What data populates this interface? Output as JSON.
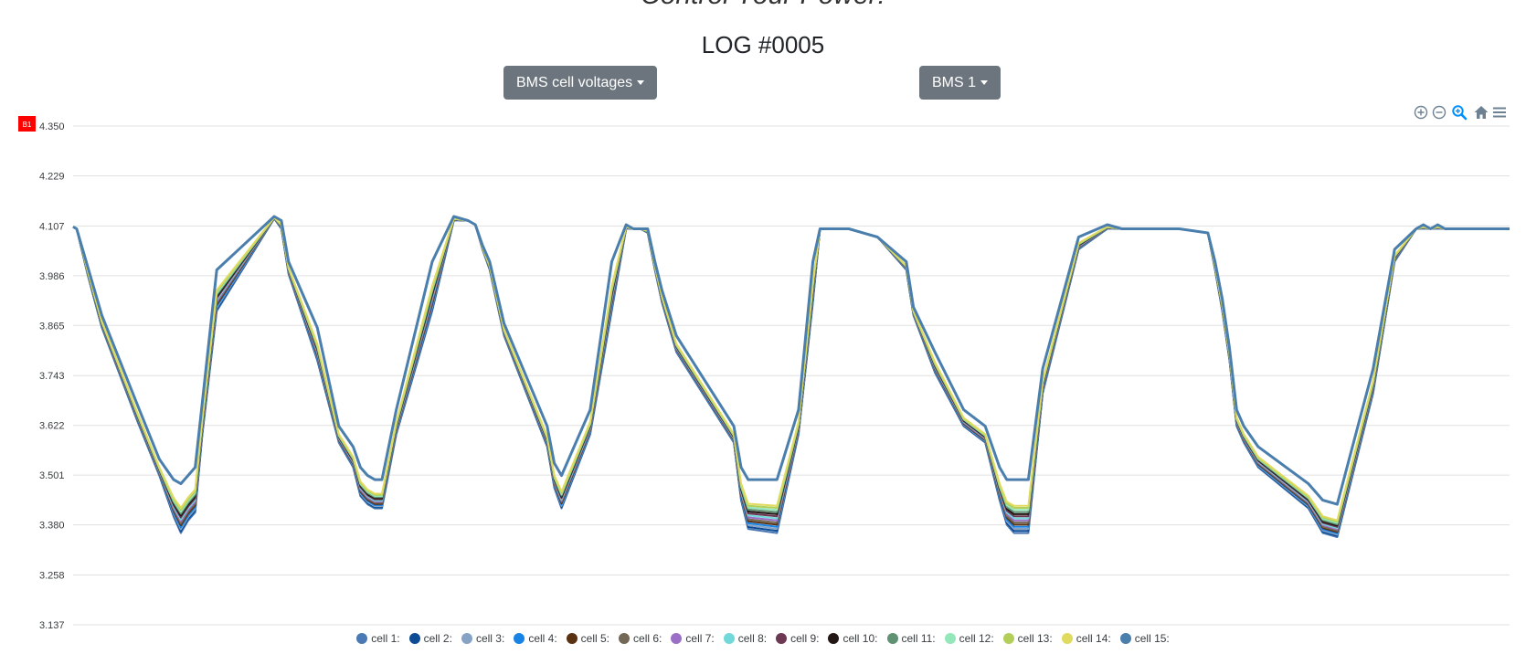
{
  "header": {
    "top_text": "Control Your Power!",
    "log_title": "LOG #0005"
  },
  "controls": {
    "type_dropdown": "BMS cell voltages",
    "bms_dropdown": "BMS 1"
  },
  "toolbar": {
    "icons": [
      "zoom-in-icon",
      "zoom-out-icon",
      "zoom-select-icon",
      "home-icon",
      "menu-icon"
    ],
    "accent": "#008ffb"
  },
  "chart_data": {
    "type": "line",
    "yticks": [
      "4.350",
      "4.229",
      "4.107",
      "3.986",
      "3.865",
      "3.743",
      "3.622",
      "3.501",
      "3.380",
      "3.258",
      "3.137"
    ],
    "ylim": [
      3.137,
      4.35
    ],
    "grid": true,
    "yaxis_annotation": {
      "label": "B1",
      "color": "#ff0000"
    },
    "legend_position": "bottom",
    "series_styles": [
      {
        "name": "cell 1:",
        "color": "#4b79b5"
      },
      {
        "name": "cell 2:",
        "color": "#0d4c94"
      },
      {
        "name": "cell 3:",
        "color": "#86a3c6"
      },
      {
        "name": "cell 4:",
        "color": "#1883e5"
      },
      {
        "name": "cell 5:",
        "color": "#5a3212"
      },
      {
        "name": "cell 6:",
        "color": "#736856"
      },
      {
        "name": "cell 7:",
        "color": "#9a6fc6"
      },
      {
        "name": "cell 8:",
        "color": "#72d9db"
      },
      {
        "name": "cell 9:",
        "color": "#6d3854"
      },
      {
        "name": "cell 10:",
        "color": "#221714"
      },
      {
        "name": "cell 11:",
        "color": "#5f9173"
      },
      {
        "name": "cell 12:",
        "color": "#94e7b8"
      },
      {
        "name": "cell 13:",
        "color": "#b3cf59"
      },
      {
        "name": "cell 14:",
        "color": "#e0da5e"
      },
      {
        "name": "cell 15:",
        "color": "#4a7ead"
      }
    ],
    "sample_shape": {
      "x": [
        0,
        0.5,
        2,
        4,
        9,
        12,
        14,
        15,
        16,
        16.5,
        17,
        18,
        20,
        28,
        29,
        30,
        34,
        37,
        39,
        40,
        41,
        42,
        43,
        45,
        50,
        53,
        55,
        56,
        57,
        58,
        60,
        66,
        67,
        68,
        72,
        75,
        77,
        78,
        79,
        80,
        81,
        82,
        84,
        92,
        93,
        94,
        98,
        101,
        103,
        104,
        105,
        106,
        108,
        112,
        116,
        117,
        120,
        124,
        127,
        129,
        130,
        131,
        132,
        133,
        135,
        140,
        144,
        146,
        150,
        154,
        158,
        159,
        160,
        161,
        162,
        163,
        165,
        172,
        174,
        176,
        181,
        184,
        187,
        188,
        189,
        190,
        191,
        193,
        200
      ],
      "series": [
        {
          "name": "cell 1 (low)",
          "y": [
            4.105,
            4.1,
            3.99,
            3.86,
            3.63,
            3.5,
            3.4,
            3.36,
            3.39,
            3.4,
            3.41,
            3.6,
            3.9,
            4.125,
            4.1,
            3.99,
            3.78,
            3.58,
            3.52,
            3.45,
            3.43,
            3.42,
            3.42,
            3.6,
            3.9,
            4.12,
            4.12,
            4.11,
            4.05,
            4.0,
            3.84,
            3.57,
            3.47,
            3.42,
            3.6,
            3.9,
            4.1,
            4.1,
            4.1,
            4.09,
            4.0,
            3.92,
            3.8,
            3.58,
            3.44,
            3.37,
            3.36,
            3.6,
            3.92,
            4.1,
            4.1,
            4.1,
            4.1,
            4.08,
            4.0,
            3.89,
            3.75,
            3.62,
            3.58,
            3.44,
            3.38,
            3.36,
            3.36,
            3.36,
            3.7,
            4.05,
            4.1,
            4.1,
            4.1,
            4.1,
            4.09,
            4.0,
            3.9,
            3.78,
            3.62,
            3.58,
            3.52,
            3.42,
            3.36,
            3.35,
            3.7,
            4.02,
            4.1,
            4.1,
            4.1,
            4.1,
            4.1,
            4.1,
            4.1
          ]
        },
        {
          "name": "cell 15 (high)",
          "y": [
            4.105,
            4.1,
            4.01,
            3.89,
            3.67,
            3.54,
            3.49,
            3.48,
            3.5,
            3.51,
            3.52,
            3.68,
            4.0,
            4.13,
            4.12,
            4.02,
            3.86,
            3.62,
            3.57,
            3.52,
            3.5,
            3.49,
            3.49,
            3.66,
            4.02,
            4.13,
            4.12,
            4.11,
            4.06,
            4.02,
            3.87,
            3.62,
            3.53,
            3.5,
            3.66,
            4.02,
            4.11,
            4.1,
            4.1,
            4.1,
            4.02,
            3.95,
            3.84,
            3.62,
            3.52,
            3.49,
            3.49,
            3.66,
            4.02,
            4.1,
            4.1,
            4.1,
            4.1,
            4.08,
            4.02,
            3.91,
            3.8,
            3.66,
            3.62,
            3.52,
            3.49,
            3.49,
            3.49,
            3.49,
            3.76,
            4.08,
            4.11,
            4.1,
            4.1,
            4.1,
            4.09,
            4.02,
            3.93,
            3.81,
            3.66,
            3.62,
            3.57,
            3.48,
            3.44,
            3.43,
            3.76,
            4.05,
            4.1,
            4.11,
            4.1,
            4.11,
            4.1,
            4.1,
            4.1
          ]
        }
      ]
    }
  }
}
